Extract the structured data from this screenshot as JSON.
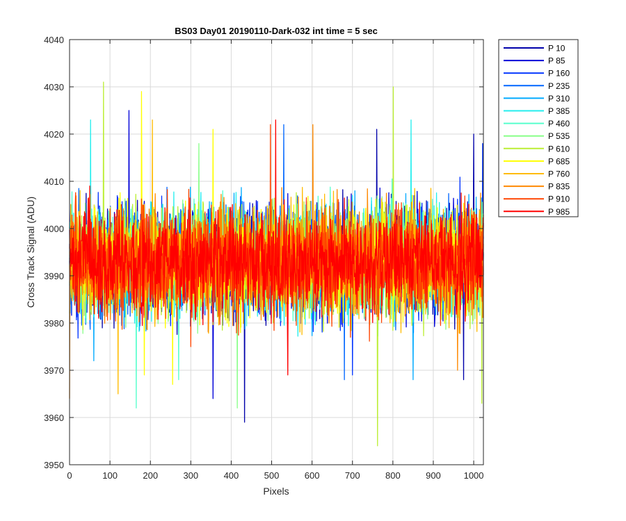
{
  "chart_data": {
    "type": "line",
    "title": "BS03 Day01 20190110-Dark-032 int time = 5 sec",
    "xlabel": "Pixels",
    "ylabel": "Cross Track Signal (ADU)",
    "xlim": [
      0,
      1024
    ],
    "ylim": [
      3950,
      4040
    ],
    "xticks": [
      0,
      100,
      200,
      300,
      400,
      500,
      600,
      700,
      800,
      900,
      1000
    ],
    "yticks": [
      3950,
      3960,
      3970,
      3980,
      3990,
      4000,
      4010,
      4020,
      4030,
      4040
    ],
    "xtick_labels": [
      "0",
      "100",
      "200",
      "300",
      "400",
      "500",
      "600",
      "700",
      "800",
      "900",
      "1000"
    ],
    "ytick_labels": [
      "3950",
      "3960",
      "3970",
      "3980",
      "3990",
      "4000",
      "4010",
      "4020",
      "4030",
      "4040"
    ],
    "grid": true,
    "legend_position": "outside-top-right",
    "approximate": true,
    "series": [
      {
        "name": "P 10",
        "color": "#0000aa",
        "mean": 3993,
        "spread": 9.5,
        "spikes": [
          [
            433,
            3959
          ],
          [
            760,
            4021
          ],
          [
            1000,
            4020
          ],
          [
            975,
            3968
          ]
        ]
      },
      {
        "name": "P 85",
        "color": "#0000d8",
        "mean": 3993,
        "spread": 9.5,
        "spikes": [
          [
            147,
            4025
          ],
          [
            355,
            3964
          ]
        ]
      },
      {
        "name": "P 160",
        "color": "#0033ff",
        "mean": 3993,
        "spread": 9.5,
        "spikes": [
          [
            1022,
            4018
          ],
          [
            700,
            3969
          ]
        ]
      },
      {
        "name": "P 235",
        "color": "#0066ff",
        "mean": 3993,
        "spread": 9.5,
        "spikes": [
          [
            530,
            4022
          ],
          [
            680,
            3968
          ]
        ]
      },
      {
        "name": "P 310",
        "color": "#00aaff",
        "mean": 3993,
        "spread": 9.5,
        "spikes": [
          [
            60,
            3972
          ],
          [
            850,
            3968
          ]
        ]
      },
      {
        "name": "P 385",
        "color": "#22eeee",
        "mean": 3993,
        "spread": 9.5,
        "spikes": [
          [
            52,
            4023
          ],
          [
            845,
            4023
          ]
        ]
      },
      {
        "name": "P 460",
        "color": "#55ffcc",
        "mean": 3993,
        "spread": 9.5,
        "spikes": [
          [
            165,
            3962
          ],
          [
            270,
            3968
          ]
        ]
      },
      {
        "name": "P 535",
        "color": "#88ff88",
        "mean": 3993,
        "spread": 9.5,
        "spikes": [
          [
            415,
            3962
          ],
          [
            320,
            4018
          ]
        ]
      },
      {
        "name": "P 610",
        "color": "#bbee33",
        "mean": 3993,
        "spread": 9.5,
        "spikes": [
          [
            84,
            4031
          ],
          [
            801,
            4030
          ],
          [
            762,
            3954
          ],
          [
            1020,
            3963
          ]
        ]
      },
      {
        "name": "P 685",
        "color": "#ffff00",
        "mean": 3993,
        "spread": 9.5,
        "spikes": [
          [
            178,
            4029
          ],
          [
            355,
            4021
          ],
          [
            255,
            3967
          ],
          [
            185,
            3969
          ]
        ]
      },
      {
        "name": "P 760",
        "color": "#ffbb00",
        "mean": 3993,
        "spread": 9.5,
        "spikes": [
          [
            205,
            4023
          ],
          [
            120,
            3965
          ]
        ]
      },
      {
        "name": "P 835",
        "color": "#ff8800",
        "mean": 3993,
        "spread": 9.5,
        "spikes": [
          [
            602,
            4022
          ],
          [
            0,
            3964
          ],
          [
            960,
            3970
          ]
        ]
      },
      {
        "name": "P 910",
        "color": "#ff4400",
        "mean": 3993,
        "spread": 9.5,
        "spikes": [
          [
            497,
            4022
          ],
          [
            300,
            3975
          ]
        ]
      },
      {
        "name": "P 985",
        "color": "#ff0000",
        "mean": 3993,
        "spread": 9.5,
        "spikes": [
          [
            510,
            4023
          ],
          [
            540,
            3969
          ]
        ]
      }
    ]
  }
}
